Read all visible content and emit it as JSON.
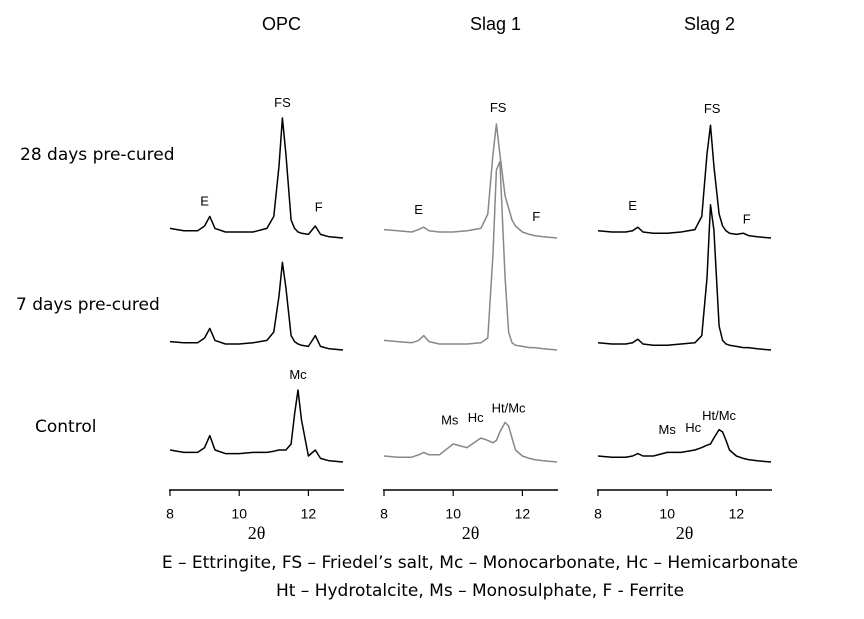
{
  "row_labels": [
    "28 days pre-cured",
    "7 days pre-cured",
    "Control"
  ],
  "caption": [
    "E – Ettringite, FS – Friedel’s salt, Mc – Monocarbonate, Hc – Hemicarbonate",
    "Ht – Hydrotalcite, Ms – Monosulphate, F - Ferrite"
  ],
  "chart_data": [
    {
      "type": "line",
      "title": "OPC",
      "xlabel": "2θ",
      "xlim": [
        8,
        13
      ],
      "xticks": [
        8,
        10,
        12
      ],
      "ylim": [
        0,
        100
      ],
      "x": [
        8.0,
        8.4,
        8.8,
        9.0,
        9.15,
        9.3,
        9.6,
        10.0,
        10.4,
        10.8,
        11.0,
        11.15,
        11.25,
        11.35,
        11.5,
        11.6,
        11.7,
        11.8,
        12.0,
        12.2,
        12.35,
        12.6,
        13.0
      ],
      "series": [
        {
          "color": "#000000",
          "values": [
            8,
            6,
            6,
            10,
            18,
            8,
            5,
            5,
            5,
            8,
            18,
            60,
            100,
            70,
            15,
            8,
            5,
            4,
            3,
            10,
            3,
            1,
            0
          ],
          "labels": [
            {
              "text": "E",
              "x": 9.0,
              "y": 30
            },
            {
              "text": "FS",
              "x": 11.25,
              "y": 112
            },
            {
              "text": "F",
              "x": 12.3,
              "y": 25
            }
          ]
        },
        {
          "color": "#000000",
          "values": [
            7,
            6,
            6,
            10,
            18,
            8,
            5,
            5,
            6,
            8,
            15,
            45,
            73,
            52,
            12,
            7,
            5,
            4,
            3,
            12,
            3,
            1,
            0
          ],
          "labels": []
        },
        {
          "color": "#000000",
          "values": [
            10,
            8,
            8,
            12,
            22,
            10,
            7,
            7,
            8,
            8,
            9,
            10,
            10,
            10,
            15,
            40,
            60,
            35,
            5,
            10,
            3,
            1,
            0
          ],
          "labels": [
            {
              "text": "Mc",
              "x": 11.7,
              "y": 72
            }
          ]
        }
      ]
    },
    {
      "type": "line",
      "title": "Slag 1",
      "xlabel": "2θ",
      "xlim": [
        8,
        13
      ],
      "xticks": [
        8,
        10,
        12
      ],
      "ylim": [
        0,
        100
      ],
      "x": [
        8.0,
        8.4,
        8.8,
        9.0,
        9.15,
        9.3,
        9.6,
        10.0,
        10.4,
        10.8,
        11.0,
        11.15,
        11.25,
        11.35,
        11.5,
        11.6,
        11.7,
        11.8,
        12.0,
        12.2,
        12.35,
        12.6,
        13.0
      ],
      "series": [
        {
          "color": "#888888",
          "values": [
            7,
            6,
            5,
            7,
            9,
            6,
            5,
            5,
            6,
            8,
            20,
            70,
            95,
            70,
            35,
            25,
            15,
            10,
            5,
            3,
            2,
            1,
            0
          ],
          "labels": [
            {
              "text": "E",
              "x": 9.0,
              "y": 23
            },
            {
              "text": "FS",
              "x": 11.3,
              "y": 108
            },
            {
              "text": "F",
              "x": 12.4,
              "y": 17
            }
          ]
        },
        {
          "color": "#888888",
          "values": [
            8,
            7,
            6,
            8,
            12,
            7,
            5,
            5,
            5,
            6,
            10,
            80,
            150,
            157,
            60,
            15,
            6,
            4,
            3,
            2,
            2,
            1,
            0
          ],
          "labels": []
        },
        {
          "color": "#888888",
          "values": [
            5,
            4,
            4,
            6,
            8,
            6,
            6,
            15,
            12,
            20,
            18,
            16,
            18,
            25,
            33,
            30,
            20,
            10,
            5,
            3,
            2,
            1,
            0
          ],
          "labels": [
            {
              "text": "Ms",
              "x": 9.9,
              "y": 34
            },
            {
              "text": "Hc",
              "x": 10.65,
              "y": 36
            },
            {
              "text": "Ht/Mc",
              "x": 11.6,
              "y": 44
            }
          ]
        }
      ]
    },
    {
      "type": "line",
      "title": "Slag 2",
      "xlabel": "2θ",
      "xlim": [
        8,
        13
      ],
      "xticks": [
        8,
        10,
        12
      ],
      "ylim": [
        0,
        100
      ],
      "x": [
        8.0,
        8.4,
        8.8,
        9.0,
        9.15,
        9.3,
        9.6,
        10.0,
        10.4,
        10.8,
        11.0,
        11.15,
        11.25,
        11.35,
        11.5,
        11.6,
        11.7,
        11.8,
        12.0,
        12.2,
        12.35,
        12.6,
        13.0
      ],
      "series": [
        {
          "color": "#000000",
          "values": [
            6,
            5,
            5,
            6,
            9,
            5,
            4,
            4,
            5,
            7,
            18,
            70,
            94,
            60,
            20,
            10,
            6,
            4,
            3,
            4,
            2,
            1,
            0
          ],
          "labels": [
            {
              "text": "E",
              "x": 9.0,
              "y": 26
            },
            {
              "text": "FS",
              "x": 11.3,
              "y": 107
            },
            {
              "text": "F",
              "x": 12.3,
              "y": 15
            }
          ]
        },
        {
          "color": "#000000",
          "values": [
            6,
            5,
            5,
            6,
            9,
            5,
            4,
            4,
            5,
            6,
            12,
            60,
            121,
            100,
            20,
            8,
            5,
            4,
            3,
            2,
            2,
            1,
            0
          ],
          "labels": []
        },
        {
          "color": "#000000",
          "values": [
            5,
            4,
            4,
            5,
            7,
            5,
            5,
            8,
            8,
            10,
            12,
            14,
            15,
            20,
            27,
            25,
            18,
            10,
            5,
            3,
            2,
            1,
            0
          ],
          "labels": [
            {
              "text": "Ms",
              "x": 10.0,
              "y": 26
            },
            {
              "text": "Hc",
              "x": 10.75,
              "y": 28
            },
            {
              "text": "Ht/Mc",
              "x": 11.5,
              "y": 38
            }
          ]
        }
      ]
    }
  ]
}
